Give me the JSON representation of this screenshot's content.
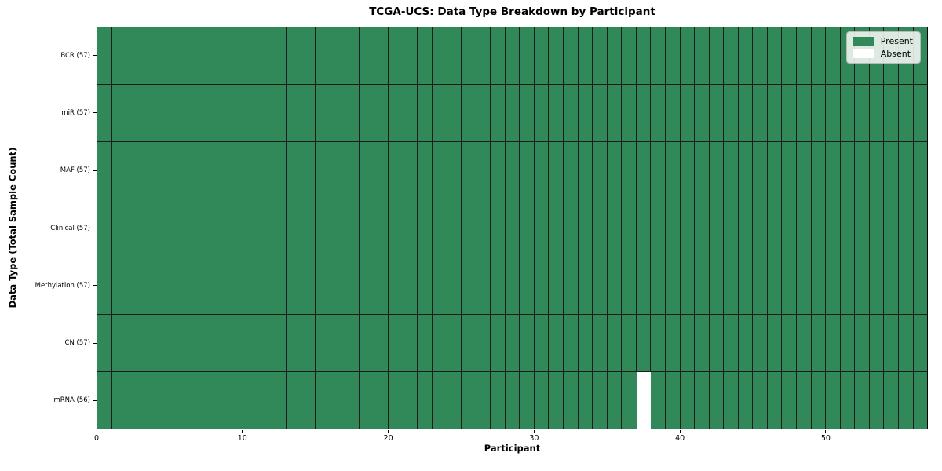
{
  "chart_data": {
    "type": "heatmap",
    "title": "TCGA-UCS: Data Type Breakdown by Participant",
    "xlabel": "Participant",
    "ylabel": "Data Type (Total Sample Count)",
    "n_participants": 57,
    "xlim": [
      0,
      57
    ],
    "x_ticks": [
      0,
      10,
      20,
      30,
      40,
      50
    ],
    "grid": "cell-edges-only",
    "rows": [
      {
        "label": "BCR (57)",
        "data_type": "BCR",
        "count": 57,
        "absent_participants": []
      },
      {
        "label": "miR (57)",
        "data_type": "miR",
        "count": 57,
        "absent_participants": []
      },
      {
        "label": "MAF (57)",
        "data_type": "MAF",
        "count": 57,
        "absent_participants": []
      },
      {
        "label": "Clinical (57)",
        "data_type": "Clinical",
        "count": 57,
        "absent_participants": []
      },
      {
        "label": "Methylation (57)",
        "data_type": "Methylation",
        "count": 57,
        "absent_participants": []
      },
      {
        "label": "CN (57)",
        "data_type": "CN",
        "count": 57,
        "absent_participants": []
      },
      {
        "label": "mRNA (56)",
        "data_type": "mRNA",
        "count": 56,
        "absent_participants": [
          37
        ]
      }
    ],
    "legend": {
      "position": "upper right",
      "entries": [
        {
          "label": "Present",
          "color": "#31895a"
        },
        {
          "label": "Absent",
          "color": "#ffffff"
        }
      ]
    },
    "colors": {
      "present": "#31895a",
      "absent": "#ffffff",
      "cell_edge": "#1c1c1c",
      "spine": "#000000"
    }
  }
}
